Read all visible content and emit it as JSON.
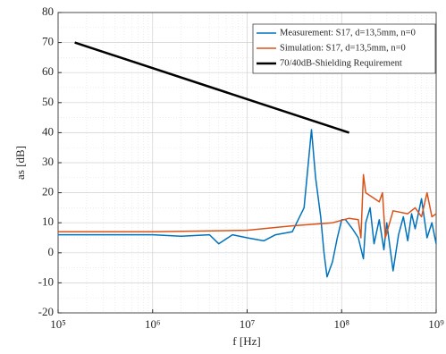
{
  "chart_data": {
    "type": "line",
    "xlabel": "f [Hz]",
    "ylabel": "as [dB]",
    "xscale": "log",
    "grid": true,
    "legend": "upper right",
    "xlim": [
      100000,
      1000000000
    ],
    "xticks": [
      {
        "value": 100000,
        "label": "10⁵"
      },
      {
        "value": 1000000,
        "label": "10⁶"
      },
      {
        "value": 10000000,
        "label": "10⁷"
      },
      {
        "value": 100000000,
        "label": "10⁸"
      },
      {
        "value": 1000000000,
        "label": "10⁹"
      }
    ],
    "ylim": [
      -20,
      80
    ],
    "yticks": [
      -20,
      -10,
      0,
      10,
      20,
      30,
      40,
      50,
      60,
      70,
      80
    ],
    "series": [
      {
        "name": "Measurement: S17, d=13,5mm, n=0",
        "color": "#0072bd",
        "x": [
          100000,
          300000,
          1000000,
          2000000,
          4000000,
          5000000,
          7000000,
          10000000,
          15000000,
          20000000,
          30000000,
          40000000,
          48000000,
          53000000,
          60000000,
          65000000,
          70000000,
          80000000,
          90000000,
          100000000,
          110000000,
          130000000,
          150000000,
          170000000,
          180000000,
          200000000,
          220000000,
          250000000,
          280000000,
          300000000,
          350000000,
          400000000,
          450000000,
          500000000,
          550000000,
          600000000,
          700000000,
          800000000,
          900000000,
          1000000000
        ],
        "values": [
          6,
          6,
          6,
          5.5,
          6,
          3,
          6,
          5,
          4,
          6,
          7,
          15,
          41,
          25,
          12,
          0,
          -8,
          -3,
          5,
          11,
          11,
          8,
          5,
          -2,
          10,
          15,
          3,
          11,
          1,
          10,
          -6,
          6,
          12,
          4,
          13,
          8,
          18,
          5,
          10,
          3
        ]
      },
      {
        "name": "Simulation: S17, d=13,5mm, n=0",
        "color": "#d95319",
        "x": [
          100000,
          1000000,
          10000000,
          30000000,
          80000000,
          120000000,
          150000000,
          160000000,
          170000000,
          180000000,
          250000000,
          270000000,
          290000000,
          350000000,
          500000000,
          600000000,
          700000000,
          800000000,
          900000000,
          1000000000
        ],
        "values": [
          7,
          7,
          7.5,
          9,
          10,
          11.5,
          11,
          5,
          26,
          20,
          17,
          20,
          5,
          14,
          13,
          15,
          12,
          20,
          12,
          13
        ]
      },
      {
        "name": "70/40dB-Shielding Requirement",
        "color": "#000000",
        "x": [
          150000,
          120000000
        ],
        "values": [
          70,
          40
        ]
      }
    ]
  }
}
